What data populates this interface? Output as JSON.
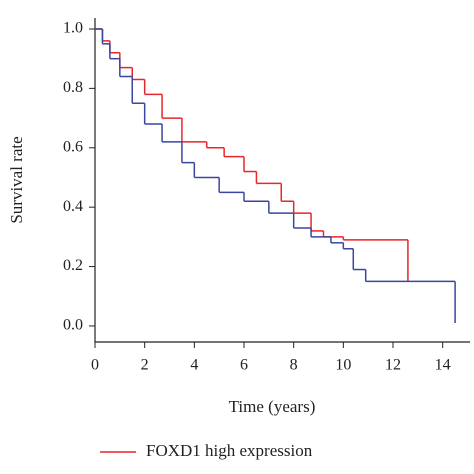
{
  "chart_data": {
    "type": "step",
    "xlabel": "Time (years)",
    "ylabel": "Survival rate",
    "xlim": [
      0,
      15.1
    ],
    "ylim": [
      -0.054,
      1.037
    ],
    "xticks": [
      0,
      2,
      4,
      6,
      8,
      10,
      12,
      14
    ],
    "yticks": [
      {
        "value": 0,
        "label": "0.0"
      },
      0.2,
      0.4,
      0.6,
      0.8,
      {
        "value": 1,
        "label": "1.0"
      }
    ],
    "series": [
      {
        "name": "FOXD1 high expression",
        "color": "#e8262b",
        "x": [
          0,
          0.3,
          0.6,
          1,
          1.5,
          2,
          2.7,
          3.5,
          4.5,
          5.2,
          6,
          6.5,
          7.5,
          8,
          8.7,
          9.2,
          10,
          12.6
        ],
        "values": [
          1,
          0.96,
          0.92,
          0.87,
          0.83,
          0.78,
          0.7,
          0.62,
          0.6,
          0.57,
          0.52,
          0.48,
          0.42,
          0.38,
          0.32,
          0.3,
          0.29,
          0.15
        ]
      },
      {
        "color": "#3a46a0",
        "x": [
          0,
          0.3,
          0.6,
          1,
          1.5,
          2,
          2.7,
          3.5,
          4,
          5,
          6,
          7,
          8,
          8.7,
          9.5,
          10,
          10.4,
          10.9,
          14.5
        ],
        "values": [
          1,
          0.95,
          0.9,
          0.84,
          0.75,
          0.68,
          0.62,
          0.55,
          0.5,
          0.45,
          0.42,
          0.38,
          0.33,
          0.3,
          0.28,
          0.26,
          0.19,
          0.15,
          0.01
        ]
      }
    ]
  }
}
